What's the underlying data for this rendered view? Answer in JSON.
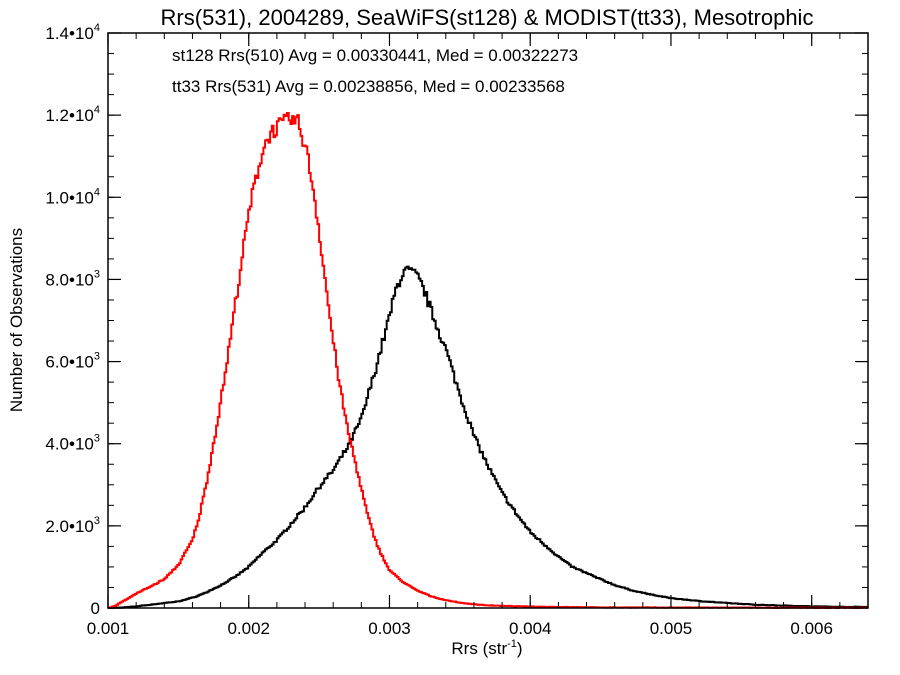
{
  "chart_data": {
    "type": "line",
    "style": "histogram-step",
    "title": "Rrs(531), 2004289, SeaWiFS(st128) & MODIST(tt33), Mesotrophic",
    "xlabel": {
      "base": "Rrs (str",
      "sup": "-1",
      "tail": ")"
    },
    "ylabel": "Number of Observations",
    "xlim": [
      0.001,
      0.0064
    ],
    "ylim": [
      0,
      14000
    ],
    "x_ticks": [
      {
        "value": 0.001,
        "label": "0.001"
      },
      {
        "value": 0.002,
        "label": "0.002"
      },
      {
        "value": 0.003,
        "label": "0.003"
      },
      {
        "value": 0.004,
        "label": "0.004"
      },
      {
        "value": 0.005,
        "label": "0.005"
      },
      {
        "value": 0.006,
        "label": "0.006"
      }
    ],
    "y_ticks": [
      {
        "value": 0,
        "mant": "0",
        "exp": ""
      },
      {
        "value": 2000,
        "mant": "2.0•10",
        "exp": "3"
      },
      {
        "value": 4000,
        "mant": "4.0•10",
        "exp": "3"
      },
      {
        "value": 6000,
        "mant": "6.0•10",
        "exp": "3"
      },
      {
        "value": 8000,
        "mant": "8.0•10",
        "exp": "3"
      },
      {
        "value": 10000,
        "mant": "1.0•10",
        "exp": "4"
      },
      {
        "value": 12000,
        "mant": "1.2•10",
        "exp": "4"
      },
      {
        "value": 14000,
        "mant": "1.4•10",
        "exp": "4"
      }
    ],
    "x_minor_step": 0.0002,
    "y_minor_step": 500,
    "grid": false,
    "annotations": [
      {
        "text": "st128 Rrs(510) Avg = 0.00330441, Med = 0.00322273",
        "color": "#000000"
      },
      {
        "text": "tt33 Rrs(531) Avg = 0.00238856, Med = 0.00233568",
        "color": "#ff0000"
      }
    ],
    "series": [
      {
        "color": "#000000",
        "x": [
          0.001,
          0.0011,
          0.0012,
          0.0013,
          0.0014,
          0.0015,
          0.0016,
          0.0017,
          0.0018,
          0.0019,
          0.002,
          0.0021,
          0.0022,
          0.0023,
          0.0024,
          0.0025,
          0.0026,
          0.0027,
          0.0028,
          0.0029,
          0.003,
          0.00305,
          0.0031,
          0.00315,
          0.0032,
          0.00325,
          0.0033,
          0.0034,
          0.0035,
          0.0036,
          0.0037,
          0.0038,
          0.0039,
          0.004,
          0.0041,
          0.0042,
          0.0043,
          0.0044,
          0.0045,
          0.0046,
          0.0047,
          0.0048,
          0.0049,
          0.005,
          0.0052,
          0.0054,
          0.0056,
          0.0058,
          0.006,
          0.0062,
          0.0064
        ],
        "y": [
          0,
          10,
          40,
          80,
          120,
          160,
          250,
          380,
          550,
          750,
          1000,
          1350,
          1650,
          2050,
          2450,
          2950,
          3350,
          3900,
          4600,
          5800,
          7100,
          7800,
          8200,
          8200,
          8050,
          7700,
          7200,
          6300,
          5200,
          4200,
          3450,
          2800,
          2300,
          1850,
          1550,
          1250,
          1000,
          850,
          700,
          560,
          450,
          370,
          300,
          240,
          170,
          120,
          80,
          60,
          40,
          30,
          25
        ]
      },
      {
        "color": "#ff0000",
        "x": [
          0.001,
          0.00105,
          0.0011,
          0.0012,
          0.0013,
          0.0014,
          0.0015,
          0.0016,
          0.00165,
          0.0017,
          0.00175,
          0.0018,
          0.00185,
          0.0019,
          0.00195,
          0.002,
          0.00205,
          0.0021,
          0.00215,
          0.0022,
          0.00225,
          0.0023,
          0.00235,
          0.0024,
          0.00245,
          0.0025,
          0.00255,
          0.0026,
          0.00265,
          0.0027,
          0.00275,
          0.0028,
          0.00285,
          0.0029,
          0.00295,
          0.003,
          0.0031,
          0.0032,
          0.0033,
          0.0034,
          0.0035,
          0.0036,
          0.0037,
          0.0038,
          0.004,
          0.0042,
          0.0045,
          0.005,
          0.0055,
          0.006,
          0.0064
        ],
        "y": [
          0,
          50,
          150,
          350,
          520,
          700,
          1050,
          1650,
          2250,
          3050,
          4000,
          5000,
          6100,
          7300,
          8450,
          9600,
          10450,
          11150,
          11550,
          11700,
          11800,
          11900,
          11800,
          11300,
          10400,
          9200,
          7800,
          6500,
          5350,
          4400,
          3650,
          2900,
          2200,
          1650,
          1250,
          920,
          620,
          420,
          280,
          190,
          130,
          90,
          65,
          50,
          35,
          25,
          15,
          10,
          8,
          5,
          5
        ]
      }
    ]
  }
}
